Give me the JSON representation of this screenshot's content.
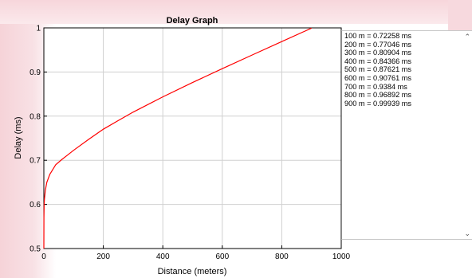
{
  "chart_data": {
    "type": "line",
    "title": "Delay Graph",
    "xlabel": "Distance (meters)",
    "ylabel": "Delay (ms)",
    "xlim": [
      0,
      1000
    ],
    "ylim": [
      0.5,
      1
    ],
    "xticks": [
      0,
      200,
      400,
      600,
      800,
      1000
    ],
    "yticks": [
      0.5,
      0.6,
      0.7,
      0.8,
      0.9,
      1
    ],
    "xtick_labels": [
      "0",
      "200",
      "400",
      "600",
      "800",
      "1000"
    ],
    "ytick_labels": [
      "0.5",
      "0.6",
      "0.7",
      "0.8",
      "0.9",
      "1"
    ],
    "grid": true,
    "series": [
      {
        "color": "#ff0000",
        "x": [
          0,
          0.3,
          1,
          2,
          5,
          10,
          20,
          40,
          60,
          80,
          100,
          150,
          200,
          250,
          300,
          400,
          500,
          600,
          700,
          800,
          900
        ],
        "y": [
          0.5,
          0.57,
          0.6,
          0.612,
          0.632,
          0.65,
          0.668,
          0.69,
          0.7015,
          0.712,
          0.72258,
          0.747,
          0.77046,
          0.79,
          0.80904,
          0.84366,
          0.87621,
          0.90761,
          0.9384,
          0.96892,
          0.99939
        ]
      }
    ]
  },
  "results_list": {
    "items": [
      "100 m = 0.72258 ms",
      "200 m = 0.77046 ms",
      "300 m = 0.80904 ms",
      "400 m = 0.84366 ms",
      "500 m = 0.87621 ms",
      "600 m = 0.90761 ms",
      "700 m = 0.9384 ms",
      "800 m = 0.96892 ms",
      "900 m = 0.99939 ms"
    ]
  },
  "colors": {
    "line": "#ff0000",
    "grid": "#d0d0d0",
    "axis": "#000000"
  }
}
